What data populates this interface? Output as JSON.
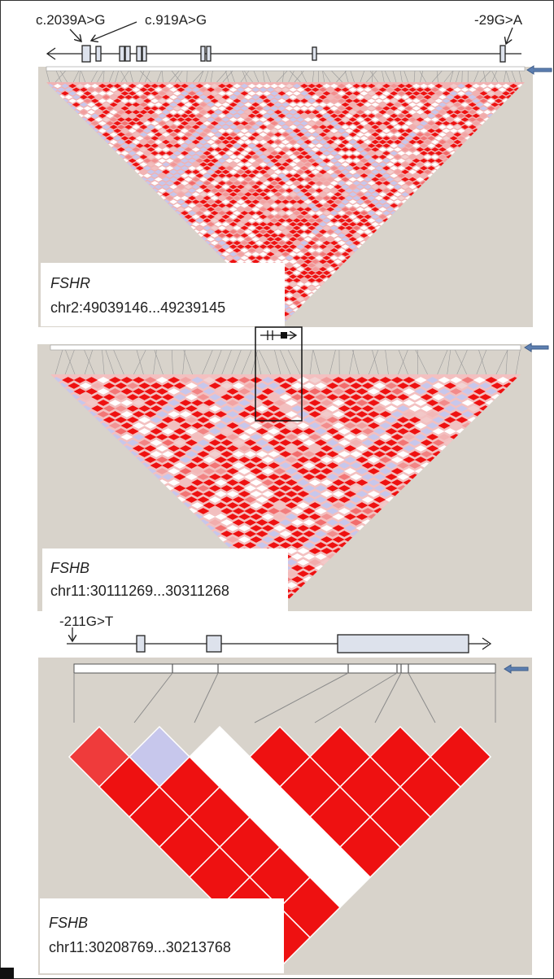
{
  "colors": {
    "background_panel": "#d8d3cb",
    "strong_ld": "#ee1111",
    "weak_ld": "#ffffff",
    "low_lod": "#c7c7ec",
    "exon_fill": "#dde2ec",
    "arrow_blue": "#5d7fb1"
  },
  "panels": [
    {
      "gene_name": "FSHR",
      "coords": "chr2:49039146...49239145",
      "variants": [
        "c.2039A>G",
        "c.919A>G",
        "-29G>A"
      ]
    },
    {
      "gene_name": "FSHB",
      "coords": "chr11:30111269...30311268"
    },
    {
      "gene_name": "FSHB",
      "coords": "chr11:30208769...30213768",
      "variants": [
        "-211G>T"
      ]
    }
  ],
  "panel3_ld_matrix": [
    [
      1,
      2,
      0,
      1,
      1,
      1,
      1
    ],
    [
      1,
      1,
      0,
      1,
      1,
      1
    ],
    [
      1,
      1,
      0,
      1,
      1
    ],
    [
      1,
      1,
      0,
      1
    ],
    [
      1,
      1,
      0
    ],
    [
      1,
      1
    ],
    [
      1
    ]
  ]
}
